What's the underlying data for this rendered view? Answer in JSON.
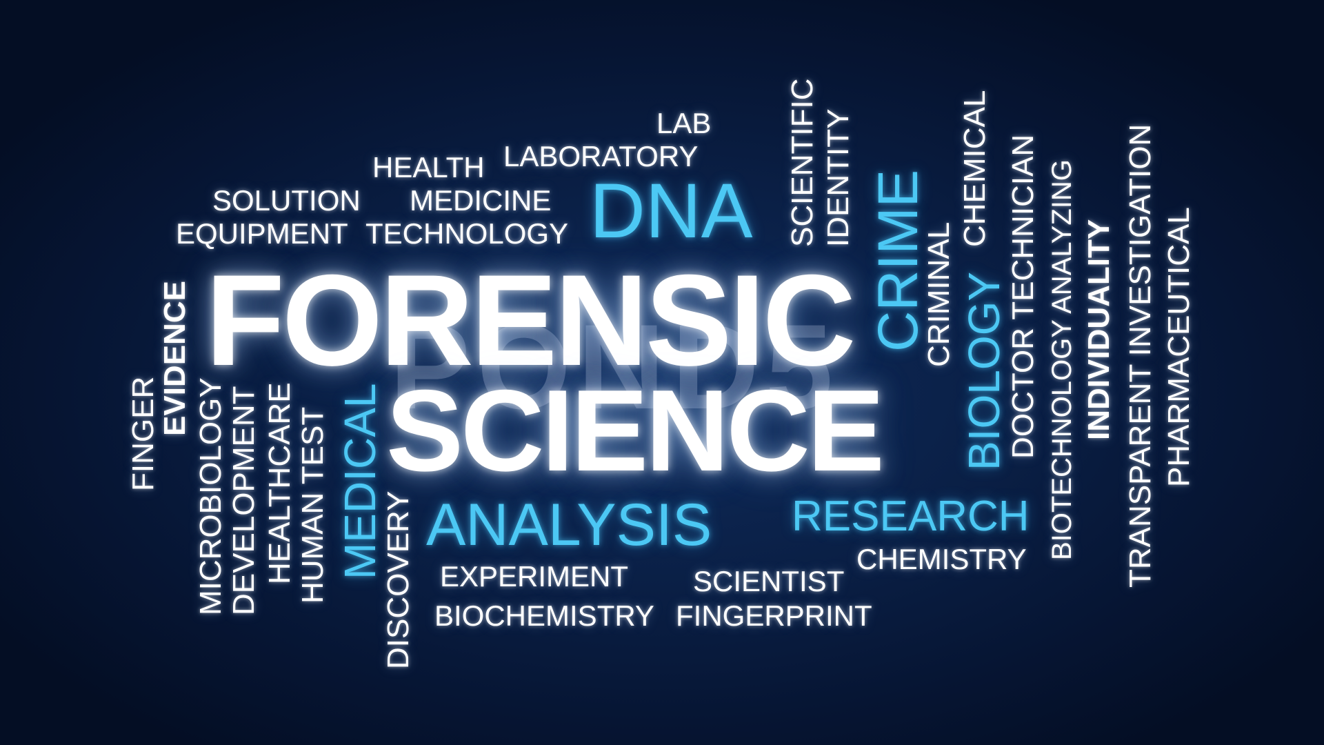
{
  "colors": {
    "background": "#0a1f45",
    "white_word": "#ffffff",
    "blue_word": "#4cc8f4"
  },
  "words": {
    "forensic": "FORENSIC",
    "science": "SCIENCE",
    "dna": "DNA",
    "analysis": "ANALYSIS",
    "research": "RESEARCH",
    "crime": "CRIME",
    "biology": "BIOLOGY",
    "medical": "MEDICAL",
    "lab": "LAB",
    "laboratory": "LABORATORY",
    "health": "HEALTH",
    "solution": "SOLUTION",
    "medicine": "MEDICINE",
    "equipment": "EQUIPMENT",
    "technology": "TECHNOLOGY",
    "experiment": "EXPERIMENT",
    "biochemistry": "BIOCHEMISTRY",
    "scientist": "SCIENTIST",
    "fingerprint": "FINGERPRINT",
    "chemistry": "CHEMISTRY",
    "scientific": "SCIENTIFIC",
    "identity": "IDENTITY",
    "criminal": "CRIMINAL",
    "chemical": "CHEMICAL",
    "doctor_technician": "DOCTOR TECHNICIAN",
    "biotechnology_analyzing": "BIOTECHNOLOGY ANALYZING",
    "individuality": "INDIVIDUALITY",
    "transparent_investigation": "TRANSPARENT INVESTIGATION",
    "pharmaceutical": "PHARMACEUTICAL",
    "finger": "FINGER",
    "evidence": "EVIDENCE",
    "microbiology": "MICROBIOLOGY",
    "development": "DEVELOPMENT",
    "healthcare": "HEALTHCARE",
    "human_test": "HUMAN TEST",
    "discovery": "DISCOVERY"
  },
  "watermark": "POND5"
}
